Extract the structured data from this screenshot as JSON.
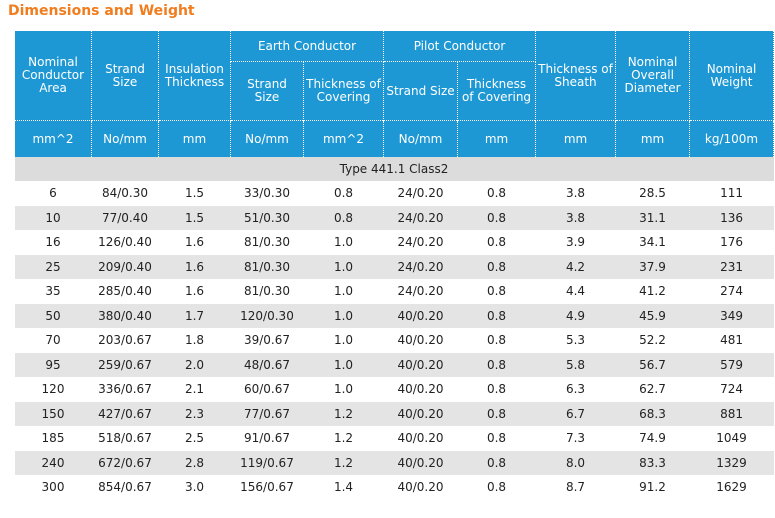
{
  "title": "Dimensions and Weight",
  "colors": {
    "title": "#f07d1e",
    "header_bg": "#1e98d4",
    "stripe": "#e4e4e4"
  },
  "headers": {
    "nominal_area": "Nominal Conductor Area",
    "strand_size": "Strand Size",
    "insulation": "Insulation Thickness",
    "earth_group": "Earth Conductor",
    "pilot_group": "Pilot Conductor",
    "earth_strand": "Strand Size",
    "earth_covering": "Thickness of Covering",
    "pilot_strand": "Strand Size",
    "pilot_covering": "Thickness of Covering",
    "sheath": "Thickness of Sheath",
    "diameter": "Nominal Overall Diameter",
    "weight": "Nominal Weight"
  },
  "units": [
    "mm^2",
    "No/mm",
    "mm",
    "No/mm",
    "mm^2",
    "No/mm",
    "mm",
    "mm",
    "mm",
    "kg/100m"
  ],
  "type_label": "Type 441.1 Class2",
  "rows": [
    [
      "6",
      "84/0.30",
      "1.5",
      "33/0.30",
      "0.8",
      "24/0.20",
      "0.8",
      "3.8",
      "28.5",
      "111"
    ],
    [
      "10",
      "77/0.40",
      "1.5",
      "51/0.30",
      "0.8",
      "24/0.20",
      "0.8",
      "3.8",
      "31.1",
      "136"
    ],
    [
      "16",
      "126/0.40",
      "1.6",
      "81/0.30",
      "1.0",
      "24/0.20",
      "0.8",
      "3.9",
      "34.1",
      "176"
    ],
    [
      "25",
      "209/0.40",
      "1.6",
      "81/0.30",
      "1.0",
      "24/0.20",
      "0.8",
      "4.2",
      "37.9",
      "231"
    ],
    [
      "35",
      "285/0.40",
      "1.6",
      "81/0.30",
      "1.0",
      "24/0.20",
      "0.8",
      "4.4",
      "41.2",
      "274"
    ],
    [
      "50",
      "380/0.40",
      "1.7",
      "120/0.30",
      "1.0",
      "40/0.20",
      "0.8",
      "4.9",
      "45.9",
      "349"
    ],
    [
      "70",
      "203/0.67",
      "1.8",
      "39/0.67",
      "1.0",
      "40/0.20",
      "0.8",
      "5.3",
      "52.2",
      "481"
    ],
    [
      "95",
      "259/0.67",
      "2.0",
      "48/0.67",
      "1.0",
      "40/0.20",
      "0.8",
      "5.8",
      "56.7",
      "579"
    ],
    [
      "120",
      "336/0.67",
      "2.1",
      "60/0.67",
      "1.0",
      "40/0.20",
      "0.8",
      "6.3",
      "62.7",
      "724"
    ],
    [
      "150",
      "427/0.67",
      "2.3",
      "77/0.67",
      "1.2",
      "40/0.20",
      "0.8",
      "6.7",
      "68.3",
      "881"
    ],
    [
      "185",
      "518/0.67",
      "2.5",
      "91/0.67",
      "1.2",
      "40/0.20",
      "0.8",
      "7.3",
      "74.9",
      "1049"
    ],
    [
      "240",
      "672/0.67",
      "2.8",
      "119/0.67",
      "1.2",
      "40/0.20",
      "0.8",
      "8.0",
      "83.3",
      "1329"
    ],
    [
      "300",
      "854/0.67",
      "3.0",
      "156/0.67",
      "1.4",
      "40/0.20",
      "0.8",
      "8.7",
      "91.2",
      "1629"
    ]
  ]
}
